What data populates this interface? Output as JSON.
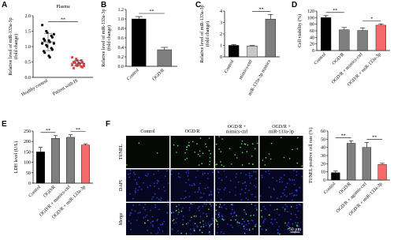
{
  "chart_data": [
    {
      "type": "strip",
      "panel": "A",
      "title": "Plasma",
      "ylabel": [
        "Relative level of miR-133a-3p",
        "(fold change)"
      ],
      "categories": [
        "Healthy control",
        "Patient with IS"
      ],
      "points": [
        [
          1.7,
          1.5,
          1.45,
          1.35,
          1.3,
          1.25,
          1.2,
          1.2,
          1.15,
          1.1,
          1.1,
          1.05,
          1.0,
          0.95,
          0.9,
          0.85,
          0.8,
          0.7,
          0.65,
          1.4
        ],
        [
          0.65,
          0.6,
          0.55,
          0.55,
          0.5,
          0.5,
          0.48,
          0.45,
          0.45,
          0.42,
          0.4,
          0.4,
          0.38,
          0.35,
          0.33,
          0.3,
          0.5,
          0.47,
          0.43,
          0.37
        ]
      ],
      "means": [
        1.15,
        0.46
      ],
      "errors": [
        0.28,
        0.09
      ],
      "colors": [
        "#000000",
        "#f03c3c"
      ],
      "ylim": [
        0,
        2.0
      ],
      "yticks": [
        {
          "value": 0,
          "label": "0.0"
        },
        {
          "value": 0.5,
          "label": "0.5"
        },
        {
          "value": 1.0,
          "label": "1.0"
        },
        {
          "value": 1.5,
          "label": "1.5"
        },
        {
          "value": 2.0,
          "label": "2.0"
        }
      ],
      "comparisons": [
        {
          "label": "**",
          "pair": [
            0,
            1
          ]
        }
      ]
    },
    {
      "type": "bar",
      "panel": "B",
      "ylabel": [
        "Relative level of miR-133a-3p",
        "(fold change)"
      ],
      "categories": [
        "Control",
        "OGD/R"
      ],
      "values": [
        1.0,
        0.35
      ],
      "errors": [
        0.05,
        0.05
      ],
      "colors": [
        "#000000",
        "#7f7f7f"
      ],
      "ylim": [
        0,
        1.2
      ],
      "yticks": [
        {
          "value": 0,
          "label": "0.0"
        },
        {
          "value": 0.2,
          "label": "0.2"
        },
        {
          "value": 0.4,
          "label": "0.4"
        },
        {
          "value": 0.6,
          "label": "0.6"
        },
        {
          "value": 0.8,
          "label": "0.8"
        },
        {
          "value": 1.0,
          "label": "1.0"
        },
        {
          "value": 1.2,
          "label": "1.2"
        }
      ],
      "comparisons": [
        {
          "label": "**",
          "pair": [
            0,
            1
          ]
        }
      ]
    },
    {
      "type": "bar",
      "panel": "C",
      "ylabel": [
        "Relative level of miR-133a-3p",
        "(fold change)"
      ],
      "categories": [
        "Control",
        "mimics-ctrl",
        "miR-133a-3p mimics"
      ],
      "values": [
        1.0,
        0.95,
        3.3
      ],
      "errors": [
        0.07,
        0.04,
        0.4
      ],
      "colors": [
        "#000000",
        "#c8c8c8",
        "#7f7f7f"
      ],
      "ylim": [
        0,
        4
      ],
      "yticks": [
        0,
        1,
        2,
        3,
        4
      ],
      "comparisons": [
        {
          "label": "**",
          "pair": [
            1,
            2
          ]
        }
      ]
    },
    {
      "type": "bar",
      "panel": "D",
      "ylabel": [
        "Cell viability (%)"
      ],
      "categories": [
        "Control",
        "OGD/R",
        "OGD/R + mimics-ctrl",
        "OGD/R + miR-133a-3p"
      ],
      "values": [
        100,
        63,
        61,
        77
      ],
      "errors": [
        6,
        7,
        8,
        4
      ],
      "colors": [
        "#000000",
        "#7f7f7f",
        "#7f7f7f",
        "#f46a6a"
      ],
      "ylim": [
        0,
        120
      ],
      "yticks": [
        0,
        20,
        40,
        60,
        80,
        100,
        120
      ],
      "comparisons": [
        {
          "label": "**",
          "pair": [
            0,
            1
          ]
        },
        {
          "label": "*",
          "pair": [
            2,
            3
          ]
        }
      ]
    },
    {
      "type": "bar",
      "panel": "E",
      "ylabel": [
        "LDH level (U/L)"
      ],
      "categories": [
        "Control",
        "OGD/R",
        "OGD/R + mimics-ctrl",
        "OGD/R + miR-133a-3p"
      ],
      "values": [
        150,
        215,
        220,
        183
      ],
      "errors": [
        22,
        13,
        12,
        6
      ],
      "colors": [
        "#000000",
        "#7f7f7f",
        "#7f7f7f",
        "#f46a6a"
      ],
      "ylim": [
        0,
        250
      ],
      "yticks": [
        0,
        50,
        100,
        150,
        200,
        250
      ],
      "comparisons": [
        {
          "label": "**",
          "pair": [
            0,
            1
          ]
        },
        {
          "label": "**",
          "pair": [
            2,
            3
          ]
        }
      ]
    },
    {
      "type": "bar",
      "ylabel": [
        "TUNEL positive cell rate (%)"
      ],
      "categories": [
        "Control",
        "OGD/R",
        "OGD/R + agomir-ctrl",
        "OGD/R + miR-133a-3p"
      ],
      "values": [
        9,
        45,
        40,
        19
      ],
      "errors": [
        2,
        3,
        6,
        1.5
      ],
      "colors": [
        "#000000",
        "#7f7f7f",
        "#7f7f7f",
        "#f46a6a"
      ],
      "ylim": [
        0,
        60
      ],
      "yticks": [
        0,
        10,
        20,
        30,
        40,
        50,
        60
      ],
      "comparisons": [
        {
          "label": "**",
          "pair": [
            0,
            1
          ]
        },
        {
          "label": "**",
          "pair": [
            2,
            3
          ]
        }
      ]
    }
  ],
  "figure_panel": {
    "panel": "F",
    "columns": [
      "Control",
      "OGD/R",
      "OGD/R +\nmimics-ctrl",
      "OGD/R +\nmiR-133a-3p"
    ],
    "rows": [
      "TUNEL",
      "DAPI",
      "Merge"
    ],
    "scale_bar": "50 μm"
  }
}
